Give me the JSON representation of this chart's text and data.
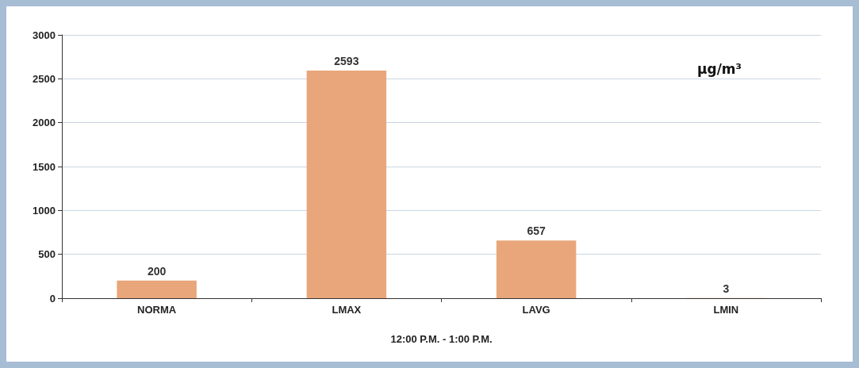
{
  "chart_data": {
    "type": "bar",
    "categories": [
      "NORMA",
      "LMAX",
      "LAVG",
      "LMIN"
    ],
    "values": [
      200,
      2593,
      657,
      3
    ],
    "color": "#e8a67a",
    "data_labels": true,
    "ylim": [
      0,
      3000
    ],
    "yticks": [
      0,
      500,
      1000,
      1500,
      2000,
      2500,
      3000
    ],
    "grid": "y",
    "xlabel": "12:00 P.M. - 1:00 P.M.",
    "annotations": [
      "µg/m³"
    ]
  }
}
